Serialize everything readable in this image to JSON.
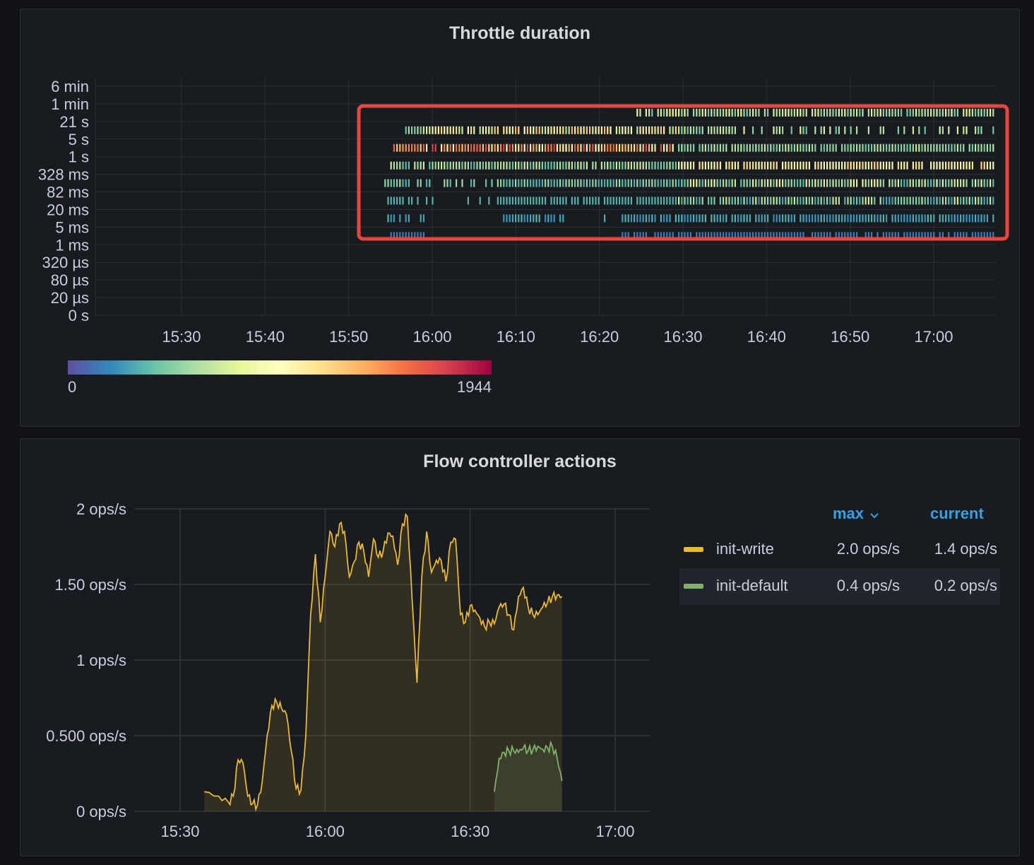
{
  "heatmap_panel": {
    "title": "Throttle duration",
    "y_ticks": [
      "0 s",
      "20 µs",
      "80 µs",
      "320 µs",
      "1 ms",
      "5 ms",
      "20 ms",
      "82 ms",
      "328 ms",
      "1 s",
      "5 s",
      "21 s",
      "1 min",
      "6 min"
    ],
    "x_ticks": [
      "15:30",
      "15:40",
      "15:50",
      "16:00",
      "16:10",
      "16:20",
      "16:30",
      "16:40",
      "16:50",
      "17:00"
    ],
    "color_scale": {
      "min_label": "0",
      "max_label": "1944",
      "stops": [
        "#5e4fa2",
        "#3288bd",
        "#66c2a5",
        "#abdda4",
        "#e6f598",
        "#ffffbf",
        "#fee08b",
        "#fdae61",
        "#f46d43",
        "#d53e4f",
        "#9e0142"
      ]
    },
    "highlight_color": "#e8453c"
  },
  "chart_data": [
    {
      "type": "heatmap",
      "title": "Throttle duration",
      "y_buckets": [
        "0 s",
        "20 µs",
        "80 µs",
        "320 µs",
        "1 ms",
        "5 ms",
        "20 ms",
        "82 ms",
        "328 ms",
        "1 s",
        "5 s",
        "21 s",
        "1 min",
        "6 min"
      ],
      "x_range": [
        "15:20",
        "17:08"
      ],
      "x_ticks": [
        "15:30",
        "15:40",
        "15:50",
        "16:00",
        "16:10",
        "16:20",
        "16:30",
        "16:40",
        "16:50",
        "17:00"
      ],
      "value_range": [
        0,
        1944
      ],
      "grid": true
    },
    {
      "type": "area",
      "title": "Flow controller actions",
      "y_ticks": [
        "0 ops/s",
        "0.500 ops/s",
        "1 ops/s",
        "1.50 ops/s",
        "2 ops/s"
      ],
      "ylim": [
        0,
        2
      ],
      "x_ticks": [
        "15:30",
        "16:00",
        "16:30",
        "17:00"
      ],
      "x_range_minutes": [
        15.38,
        16.47
      ],
      "grid": true,
      "legend_position": "right",
      "series": [
        {
          "name": "init-write",
          "color": "#eab839",
          "max": "2.0 ops/s",
          "current": "1.4 ops/s",
          "values": [
            [
              935,
              0.13
            ],
            [
              938,
              0.1
            ],
            [
              940,
              0.06
            ],
            [
              941,
              0.1
            ],
            [
              942,
              0.34
            ],
            [
              943,
              0.32
            ],
            [
              944,
              0.1
            ],
            [
              945,
              0.05
            ],
            [
              946,
              0.04
            ],
            [
              947,
              0.2
            ],
            [
              948,
              0.5
            ],
            [
              949,
              0.7
            ],
            [
              950,
              0.72
            ],
            [
              951,
              0.68
            ],
            [
              952,
              0.64
            ],
            [
              953,
              0.4
            ],
            [
              954,
              0.15
            ],
            [
              955,
              0.14
            ],
            [
              956,
              0.5
            ],
            [
              957,
              1.3
            ],
            [
              958,
              1.7
            ],
            [
              959,
              1.25
            ],
            [
              960,
              1.55
            ],
            [
              961,
              1.85
            ],
            [
              962,
              1.75
            ],
            [
              963,
              1.9
            ],
            [
              964,
              1.85
            ],
            [
              965,
              1.55
            ],
            [
              966,
              1.65
            ],
            [
              967,
              1.78
            ],
            [
              968,
              1.72
            ],
            [
              969,
              1.55
            ],
            [
              970,
              1.8
            ],
            [
              971,
              1.68
            ],
            [
              972,
              1.72
            ],
            [
              973,
              1.84
            ],
            [
              974,
              1.82
            ],
            [
              975,
              1.63
            ],
            [
              976,
              1.9
            ],
            [
              977,
              1.95
            ],
            [
              978,
              1.4
            ],
            [
              979,
              0.85
            ],
            [
              980,
              1.55
            ],
            [
              981,
              1.85
            ],
            [
              982,
              1.58
            ],
            [
              983,
              1.66
            ],
            [
              984,
              1.66
            ],
            [
              985,
              1.52
            ],
            [
              986,
              1.78
            ],
            [
              987,
              1.8
            ],
            [
              988,
              1.3
            ],
            [
              989,
              1.25
            ],
            [
              990,
              1.36
            ],
            [
              991,
              1.33
            ],
            [
              992,
              1.28
            ],
            [
              993,
              1.22
            ],
            [
              994,
              1.25
            ],
            [
              995,
              1.24
            ],
            [
              996,
              1.35
            ],
            [
              997,
              1.37
            ],
            [
              998,
              1.3
            ],
            [
              999,
              1.2
            ],
            [
              1000,
              1.42
            ],
            [
              1001,
              1.48
            ],
            [
              1002,
              1.35
            ],
            [
              1003,
              1.3
            ],
            [
              1004,
              1.3
            ],
            [
              1005,
              1.35
            ],
            [
              1006,
              1.38
            ],
            [
              1007,
              1.42
            ],
            [
              1008,
              1.43
            ],
            [
              1009,
              1.42
            ]
          ]
        },
        {
          "name": "init-default",
          "color": "#7eb26d",
          "max": "0.4 ops/s",
          "current": "0.2 ops/s",
          "values": [
            [
              995,
              0.13
            ],
            [
              996,
              0.35
            ],
            [
              997,
              0.39
            ],
            [
              998,
              0.4
            ],
            [
              999,
              0.4
            ],
            [
              1000,
              0.39
            ],
            [
              1001,
              0.42
            ],
            [
              1002,
              0.4
            ],
            [
              1003,
              0.41
            ],
            [
              1004,
              0.43
            ],
            [
              1005,
              0.41
            ],
            [
              1006,
              0.42
            ],
            [
              1007,
              0.43
            ],
            [
              1008,
              0.35
            ],
            [
              1009,
              0.2
            ]
          ]
        }
      ]
    }
  ],
  "area_panel": {
    "title": "Flow controller actions",
    "legend": {
      "max_header": "max",
      "current_header": "current"
    }
  }
}
